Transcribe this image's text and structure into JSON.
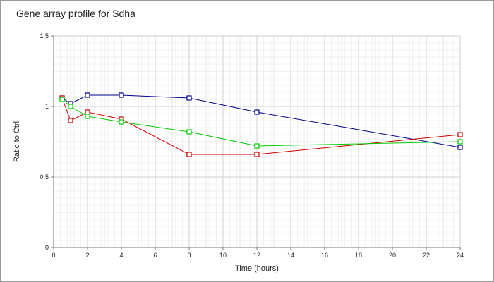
{
  "title": "Gene array profile for Sdha",
  "chart_data": {
    "type": "line",
    "title": "Gene array profile for Sdha",
    "xlabel": "Time (hours)",
    "ylabel": "Ratio to Ctrl",
    "xlim": [
      0,
      24
    ],
    "ylim": [
      0,
      1.5
    ],
    "x_ticks": [
      "0",
      "2",
      "4",
      "6",
      "8",
      "10",
      "12",
      "14",
      "16",
      "18",
      "20",
      "22",
      "24"
    ],
    "y_ticks": [
      "0",
      "0.5",
      "1",
      "1.5"
    ],
    "grid": true,
    "series": [
      {
        "color": "#00008b",
        "marker": "square",
        "points": [
          {
            "x": 0.5,
            "y": 1.06
          },
          {
            "x": 1,
            "y": 1.02
          },
          {
            "x": 2,
            "y": 1.08
          },
          {
            "x": 4,
            "y": 1.08
          },
          {
            "x": 8,
            "y": 1.06
          },
          {
            "x": 12,
            "y": 0.96
          },
          {
            "x": 24,
            "y": 0.71
          }
        ]
      },
      {
        "color": "#cc0000",
        "marker": "square",
        "points": [
          {
            "x": 0.5,
            "y": 1.06
          },
          {
            "x": 1,
            "y": 0.9
          },
          {
            "x": 2,
            "y": 0.96
          },
          {
            "x": 4,
            "y": 0.91
          },
          {
            "x": 8,
            "y": 0.66
          },
          {
            "x": 12,
            "y": 0.66
          },
          {
            "x": 24,
            "y": 0.8
          }
        ]
      },
      {
        "color": "#00cc00",
        "marker": "square",
        "points": [
          {
            "x": 0.5,
            "y": 1.05
          },
          {
            "x": 1,
            "y": 1.0
          },
          {
            "x": 2,
            "y": 0.93
          },
          {
            "x": 4,
            "y": 0.89
          },
          {
            "x": 8,
            "y": 0.82
          },
          {
            "x": 12,
            "y": 0.72
          },
          {
            "x": 24,
            "y": 0.75
          }
        ]
      }
    ]
  }
}
